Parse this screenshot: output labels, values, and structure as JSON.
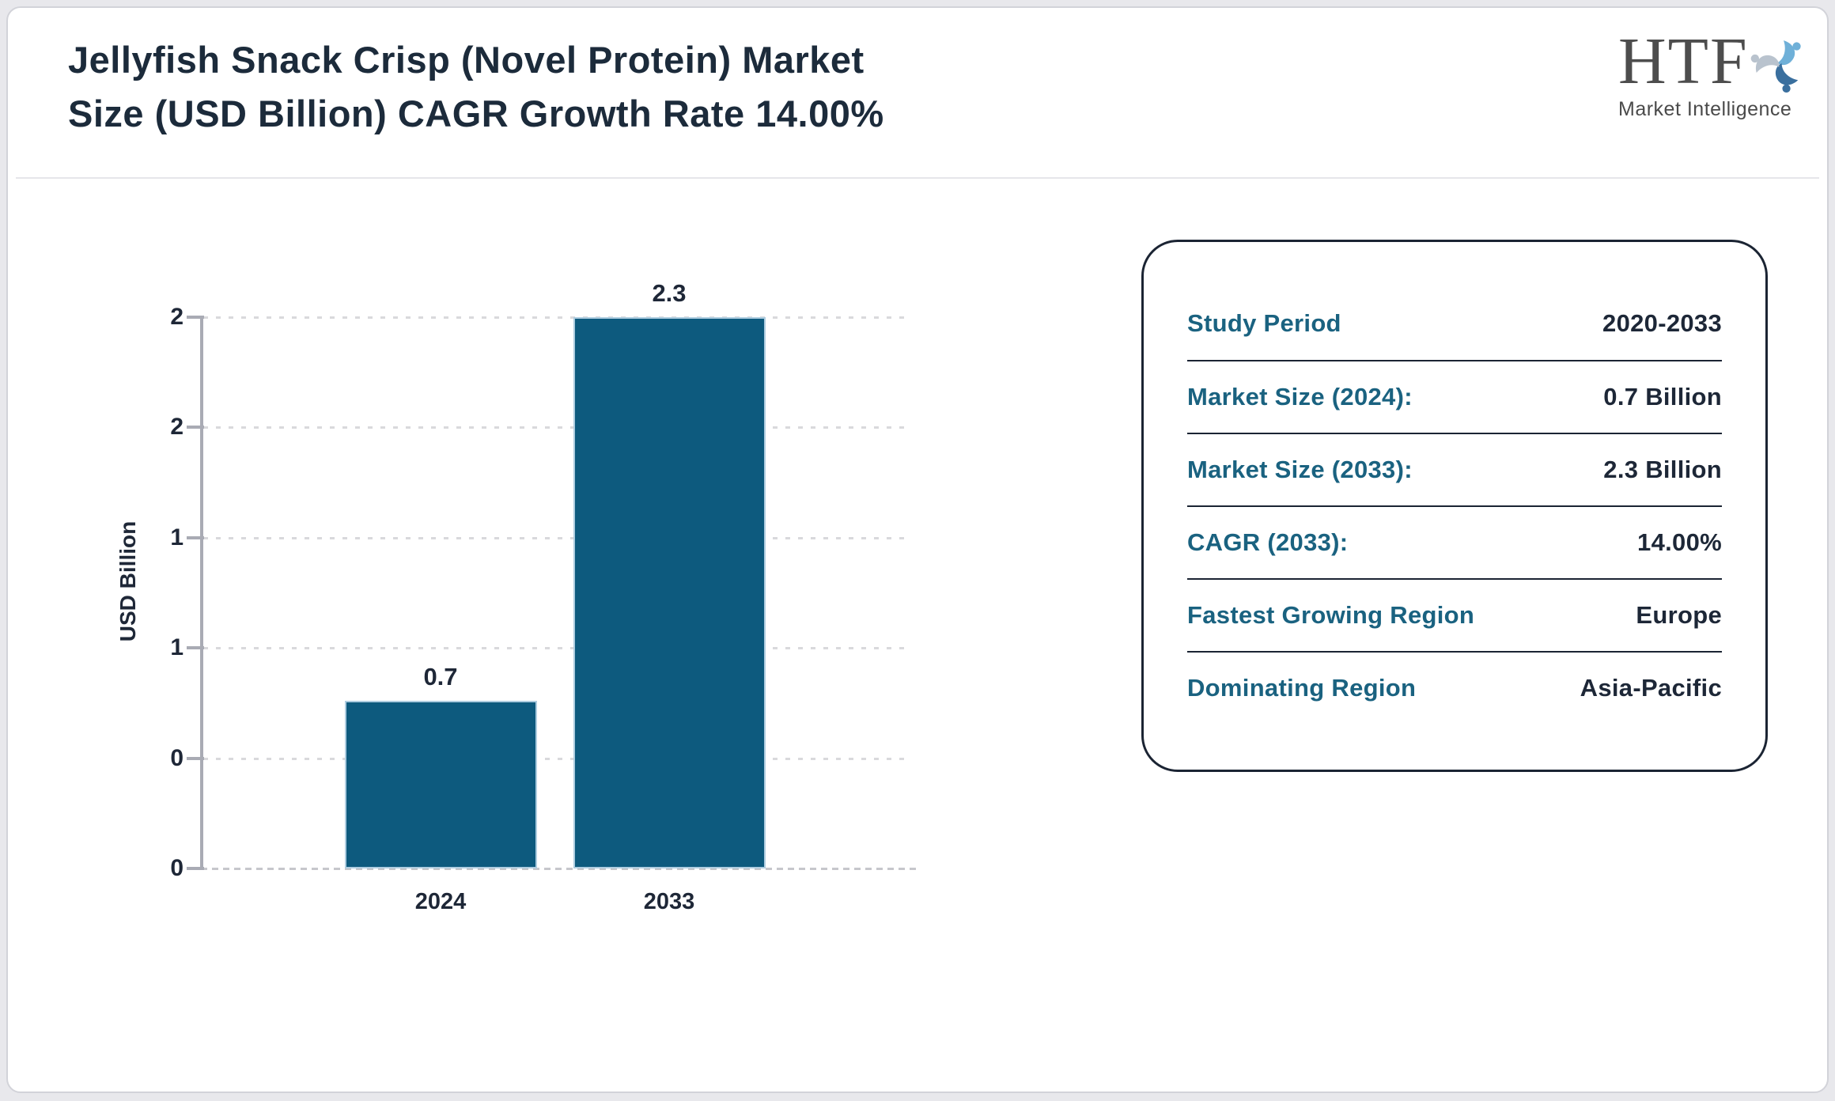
{
  "header": {
    "title_line1": "Jellyfish Snack Crisp (Novel Protein) Market",
    "title_line2": "Size (USD Billion) CAGR Growth Rate 14.00%",
    "logo": {
      "text": "HTF",
      "subtext": "Market Intelligence",
      "icon": "htf-swirl-icon"
    }
  },
  "chart_data": {
    "type": "bar",
    "title": "",
    "categories": [
      "2024",
      "2033"
    ],
    "values": [
      0.7,
      2.3
    ],
    "bar_labels": [
      "0.7",
      "2.3"
    ],
    "xlabel": "",
    "ylabel": "USD Billion",
    "ylim": [
      0,
      2.3
    ],
    "ytick_values": [
      0,
      0.46,
      0.92,
      1.38,
      1.84,
      2.3
    ],
    "ytick_labels": [
      "0",
      "0",
      "1",
      "1",
      "2",
      "2"
    ],
    "grid": "horizontal dotted",
    "legend": "none",
    "bar_color": "#0d5a7e"
  },
  "info_panel": {
    "rows": [
      {
        "label": "Study Period",
        "value": "2020-2033"
      },
      {
        "label": "Market Size (2024):",
        "value": "0.7 Billion"
      },
      {
        "label": "Market Size (2033):",
        "value": "2.3 Billion"
      },
      {
        "label": "CAGR (2033):",
        "value": "14.00%"
      },
      {
        "label": "Fastest Growing Region",
        "value": "Europe"
      },
      {
        "label": "Dominating Region",
        "value": "Asia-Pacific"
      }
    ]
  },
  "colors": {
    "bar": "#0d5a7e",
    "label_teal": "#1a6280",
    "text_dark": "#1d2737",
    "title_navy": "#1c2b3b",
    "axis_gray": "#a9abb4",
    "page_bg": "#e8e8ec",
    "logo_blue_light": "#6fb0d8",
    "logo_blue_dark": "#3a6f9e",
    "logo_gray": "#b9c3ce"
  }
}
